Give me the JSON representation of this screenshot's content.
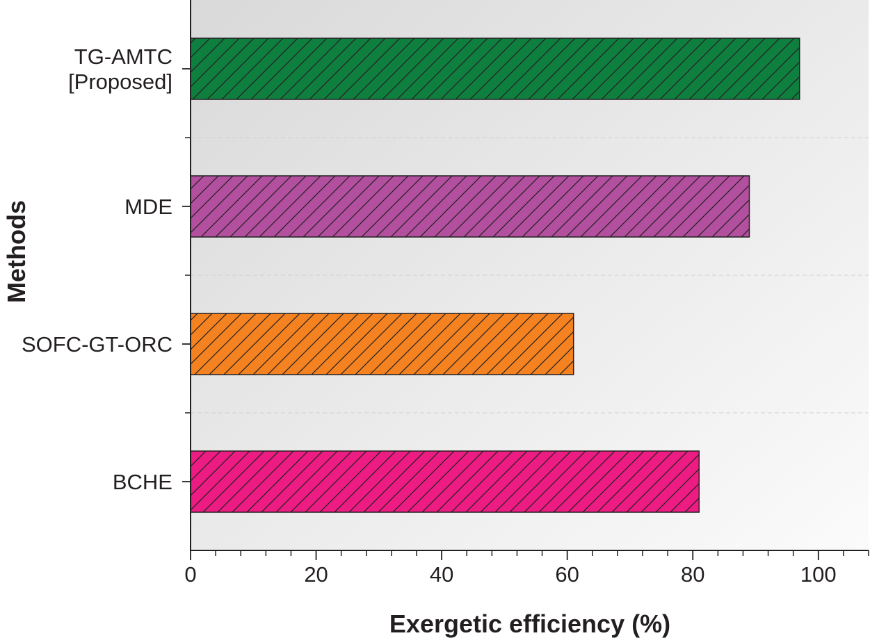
{
  "chart_data": {
    "type": "bar",
    "orientation": "horizontal",
    "categories": [
      "TG-AMTC [Proposed]",
      "MDE",
      "SOFC-GT-ORC",
      "BCHE"
    ],
    "category_lines": [
      [
        "TG-AMTC",
        "[Proposed]"
      ],
      [
        "MDE"
      ],
      [
        "SOFC-GT-ORC"
      ],
      [
        "BCHE"
      ]
    ],
    "values": [
      97,
      89,
      61,
      81
    ],
    "colors": [
      "#0f7f40",
      "#b24f9e",
      "#f58220",
      "#ed1c82"
    ],
    "hatch": "diagonal",
    "xlabel": "Exergetic efficiency (%)",
    "ylabel": "Methods",
    "xlim": [
      0,
      108
    ],
    "xticks": [
      0,
      20,
      40,
      60,
      80,
      100
    ],
    "xtick_labels": [
      "0",
      "20",
      "40",
      "60",
      "80",
      "100"
    ],
    "minor_tick_step": 4,
    "grid": "horizontal dashed separators between categories"
  }
}
